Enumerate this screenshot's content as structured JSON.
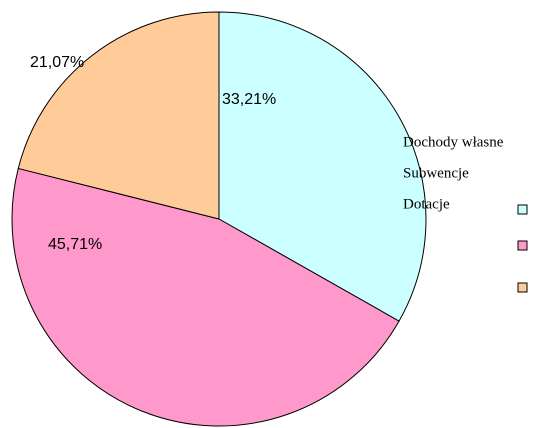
{
  "chart_data": {
    "type": "pie",
    "categories": [
      "Dochody własne",
      "Subwencje",
      "Dotacje"
    ],
    "values": [
      33.21,
      45.71,
      21.07
    ],
    "value_labels": [
      "33,21%",
      "45,71%",
      "21,07%"
    ],
    "colors": [
      "#ccffff",
      "#ff99cc",
      "#ffcc99"
    ]
  }
}
